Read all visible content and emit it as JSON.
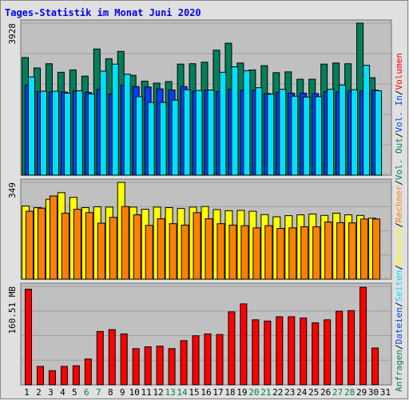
{
  "title": "Tages-Statistik im Monat Juni 2020",
  "colors": {
    "background": "#e0e0e0",
    "plot": "#c0c0c0",
    "grid": "#a0a0a0",
    "title": "#0000ff",
    "tick_weekday": "#000000",
    "tick_weekend": "#008040",
    "anfragen": "#00805c",
    "dateien": "#0040ff",
    "seiten": "#00e0ff",
    "besuche": "#ffff00",
    "rechner": "#ff8000",
    "volumen": "#ff0000"
  },
  "right_legend": [
    {
      "text": "Anfragen",
      "color": "#00805c"
    },
    {
      "text": "/",
      "color": "#000000"
    },
    {
      "text": "Dateien",
      "color": "#0040ff"
    },
    {
      "text": "/",
      "color": "#000000"
    },
    {
      "text": "Seiten",
      "color": "#00e0ff"
    },
    {
      "text": "/",
      "color": "#000000"
    },
    {
      "text": "Besuche",
      "color": "#ffff00"
    },
    {
      "text": "/",
      "color": "#000000"
    },
    {
      "text": "Rechner",
      "color": "#ff8000"
    },
    {
      "text": "/",
      "color": "#000000"
    },
    {
      "text": "Vol. Out",
      "color": "#00805c"
    },
    {
      "text": "/",
      "color": "#000000"
    },
    {
      "text": "Vol. In",
      "color": "#0040ff"
    },
    {
      "text": "/",
      "color": "#000000"
    },
    {
      "text": "Volumen",
      "color": "#ff0000"
    }
  ],
  "chart_data": {
    "type": "bar",
    "title": "Tages-Statistik im Monat Juni 2020",
    "categories": [
      "1",
      "2",
      "3",
      "4",
      "5",
      "6",
      "7",
      "8",
      "9",
      "10",
      "11",
      "12",
      "13",
      "14",
      "15",
      "16",
      "17",
      "18",
      "19",
      "20",
      "21",
      "22",
      "23",
      "24",
      "25",
      "26",
      "27",
      "28",
      "29",
      "30",
      "31"
    ],
    "weekend_days": [
      "6",
      "7",
      "13",
      "14",
      "20",
      "21",
      "27",
      "28"
    ],
    "panels": [
      {
        "id": "hits",
        "ymax_label": "3928",
        "ylim": [
          0,
          3928
        ],
        "series": [
          {
            "name": "Anfragen",
            "color": "#00805c",
            "values": [
              3040,
              2770,
              2880,
              2660,
              2720,
              2560,
              3260,
              3010,
              3200,
              2580,
              2430,
              2380,
              2420,
              2870,
              2880,
              2920,
              3230,
              3410,
              2900,
              2720,
              2830,
              2650,
              2670,
              2480,
              2480,
              2870,
              2900,
              2880,
              3930,
              2520,
              0
            ]
          },
          {
            "name": "Dateien",
            "color": "#0040ff",
            "values": [
              2330,
              2160,
              2150,
              2150,
              2180,
              2140,
              2220,
              2100,
              2330,
              2290,
              2280,
              2230,
              2200,
              2290,
              2170,
              2200,
              2160,
              2220,
              2190,
              2200,
              2110,
              2140,
              2120,
              2120,
              2110,
              2160,
              2150,
              2180,
              2180,
              2200,
              0
            ]
          },
          {
            "name": "Seiten",
            "color": "#00e0ff",
            "values": [
              2540,
              2170,
              2170,
              2120,
              2180,
              2100,
              2690,
              2870,
              2610,
              2030,
              1880,
              1880,
              1940,
              2210,
              2190,
              2200,
              2660,
              2800,
              2700,
              2260,
              2090,
              2220,
              2040,
              2020,
              2030,
              2220,
              2330,
              2210,
              2840,
              2180,
              0
            ]
          }
        ]
      },
      {
        "id": "visits",
        "ymax_label": "349",
        "ylim": [
          0,
          349
        ],
        "series": [
          {
            "name": "Besuche",
            "color": "#ffff00",
            "values": [
              264,
              258,
              288,
              312,
              295,
              258,
              261,
              260,
              349,
              260,
              252,
              260,
              258,
              255,
              260,
              262,
              251,
              247,
              248,
              245,
              233,
              225,
              229,
              232,
              235,
              230,
              238,
              232,
              230,
              220,
              0
            ]
          },
          {
            "name": "Rechner",
            "color": "#ff8000",
            "values": [
              245,
              256,
              300,
              238,
              252,
              240,
              202,
              223,
              262,
              232,
              194,
              218,
              200,
              195,
              240,
              218,
              200,
              195,
              193,
              185,
              193,
              183,
              185,
              189,
              189,
              206,
              204,
              203,
              217,
              217,
              0
            ]
          }
        ]
      },
      {
        "id": "volume",
        "ymax_label": "160.51 MB",
        "ylim": [
          0,
          160.51
        ],
        "series": [
          {
            "name": "Volumen",
            "color": "#ff0000",
            "values": [
              156,
              30,
              23,
              30,
              31,
              42,
              87,
              90,
              83,
              59,
              62,
              63,
              59,
              72,
              80,
              83,
              82,
              119,
              132,
              106,
              104,
              111,
              111,
              109,
              101,
              106,
              120,
              121,
              159,
              60,
              0
            ]
          }
        ]
      }
    ]
  }
}
